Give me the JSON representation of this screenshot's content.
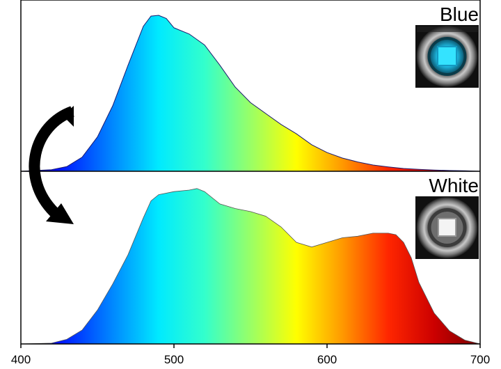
{
  "chart_data": [
    {
      "type": "area",
      "panel": "top",
      "label": "Blue",
      "photo": "blue-led-photo",
      "fill": "visible-spectrum-gradient",
      "xlim": [
        400,
        700
      ],
      "ylim": [
        0,
        1
      ],
      "x": [
        400,
        420,
        430,
        440,
        450,
        460,
        470,
        480,
        485,
        490,
        495,
        500,
        510,
        520,
        530,
        540,
        550,
        560,
        570,
        580,
        590,
        600,
        610,
        620,
        630,
        640,
        650,
        660,
        670,
        680,
        690,
        700
      ],
      "values": [
        0,
        0.01,
        0.03,
        0.09,
        0.22,
        0.42,
        0.68,
        0.93,
        0.995,
        1.0,
        0.98,
        0.92,
        0.88,
        0.81,
        0.68,
        0.54,
        0.44,
        0.37,
        0.3,
        0.24,
        0.17,
        0.12,
        0.085,
        0.06,
        0.04,
        0.028,
        0.018,
        0.012,
        0.008,
        0.005,
        0.003,
        0
      ]
    },
    {
      "type": "area",
      "panel": "bottom",
      "label": "White",
      "photo": "white-led-photo",
      "fill": "visible-spectrum-gradient",
      "xlim": [
        400,
        700
      ],
      "ylim": [
        0,
        1
      ],
      "x": [
        400,
        420,
        430,
        440,
        450,
        460,
        470,
        480,
        485,
        490,
        500,
        510,
        515,
        520,
        530,
        540,
        550,
        560,
        570,
        580,
        590,
        600,
        610,
        620,
        630,
        640,
        645,
        650,
        655,
        660,
        670,
        680,
        690,
        700
      ],
      "values": [
        0,
        0.005,
        0.03,
        0.09,
        0.22,
        0.39,
        0.58,
        0.82,
        0.93,
        0.97,
        0.99,
        1.0,
        1.01,
        0.99,
        0.91,
        0.88,
        0.86,
        0.83,
        0.76,
        0.66,
        0.63,
        0.66,
        0.69,
        0.7,
        0.72,
        0.72,
        0.71,
        0.66,
        0.56,
        0.4,
        0.2,
        0.085,
        0.025,
        0
      ]
    }
  ],
  "axis": {
    "x_ticks": [
      400,
      500,
      600,
      700
    ],
    "x_tick_labels": [
      "400",
      "500",
      "600",
      "700"
    ]
  },
  "arrow": {
    "icon": "curved-arrow-icon",
    "direction": "top-to-bottom"
  }
}
